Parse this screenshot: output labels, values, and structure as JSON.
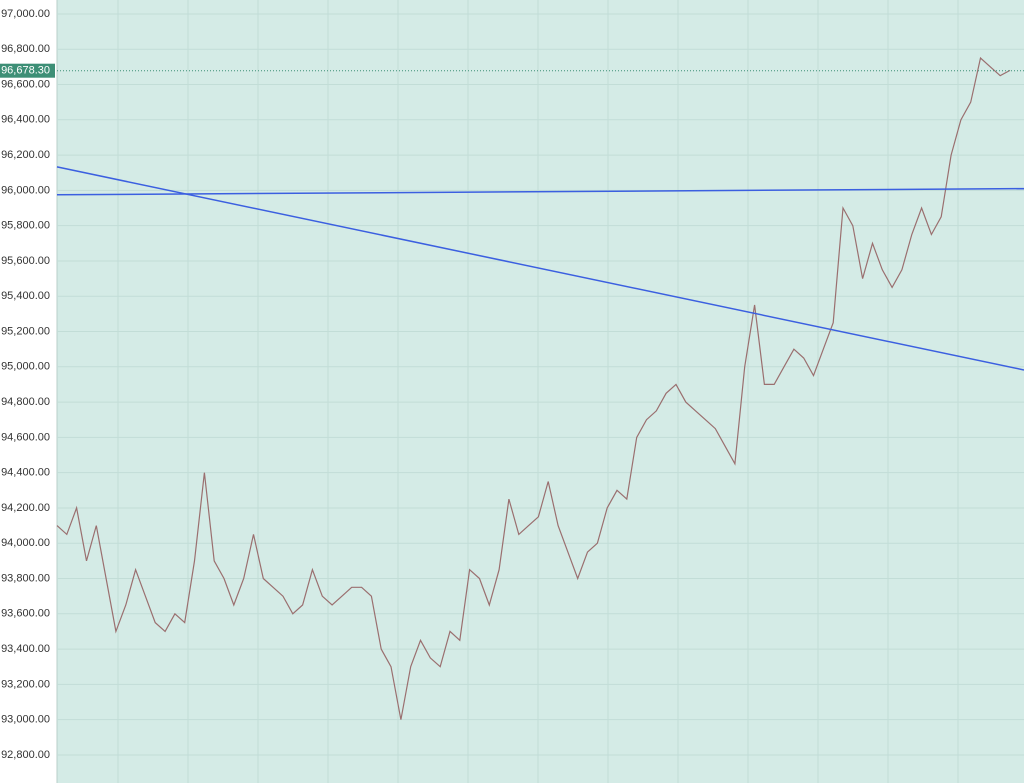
{
  "chart_data": {
    "type": "line",
    "color": "#9a6f6f",
    "background": "#d4ebe6",
    "grid": true,
    "ylim": [
      92641,
      97079
    ],
    "yticks": [
      {
        "value": 92800,
        "label": "92,800.00"
      },
      {
        "value": 93000,
        "label": "93,000.00"
      },
      {
        "value": 93200,
        "label": "93,200.00"
      },
      {
        "value": 93400,
        "label": "93,400.00"
      },
      {
        "value": 93600,
        "label": "93,600.00"
      },
      {
        "value": 93800,
        "label": "93,800.00"
      },
      {
        "value": 94000,
        "label": "94,000.00"
      },
      {
        "value": 94200,
        "label": "94,200.00"
      },
      {
        "value": 94400,
        "label": "94,400.00"
      },
      {
        "value": 94600,
        "label": "94,600.00"
      },
      {
        "value": 94800,
        "label": "94,800.00"
      },
      {
        "value": 95000,
        "label": "95,000.00"
      },
      {
        "value": 95200,
        "label": "95,200.00"
      },
      {
        "value": 95400,
        "label": "95,400.00"
      },
      {
        "value": 95600,
        "label": "95,600.00"
      },
      {
        "value": 95800,
        "label": "95,800.00"
      },
      {
        "value": 96000,
        "label": "96,000.00"
      },
      {
        "value": 96200,
        "label": "96,200.00"
      },
      {
        "value": 96400,
        "label": "96,400.00"
      },
      {
        "value": 96600,
        "label": "96,600.00"
      },
      {
        "value": 96800,
        "label": "96,800.00"
      },
      {
        "value": 97000,
        "label": "97,000.00"
      }
    ],
    "values": [
      94100,
      94050,
      94200,
      93900,
      94100,
      93800,
      93500,
      93650,
      93850,
      93700,
      93550,
      93500,
      93600,
      93550,
      93900,
      94400,
      93900,
      93800,
      93650,
      93800,
      94050,
      93800,
      93750,
      93700,
      93600,
      93650,
      93850,
      93700,
      93650,
      93700,
      93750,
      93750,
      93700,
      93400,
      93300,
      93000,
      93300,
      93450,
      93350,
      93300,
      93500,
      93450,
      93850,
      93800,
      93650,
      93850,
      94250,
      94050,
      94100,
      94150,
      94350,
      94100,
      93950,
      93800,
      93950,
      94000,
      94200,
      94300,
      94250,
      94600,
      94700,
      94750,
      94850,
      94900,
      94800,
      94750,
      94700,
      94650,
      94550,
      94450,
      95000,
      95350,
      94900,
      94900,
      95000,
      95100,
      95050,
      94950,
      95100,
      95250,
      95900,
      95800,
      95500,
      95700,
      95550,
      95450,
      95550,
      95750,
      95900,
      95750,
      95850,
      96200,
      96400,
      96500,
      96750,
      96700,
      96650,
      96680
    ],
    "last_price": {
      "value": 96678.3,
      "label": "96,678.30",
      "color": "#3d8f76"
    },
    "trend_lines": [
      {
        "color": "#3b5fe0",
        "start": 95975,
        "end": 96010
      },
      {
        "color": "#3b5fe0",
        "start": 96133,
        "end": 94982
      }
    ]
  }
}
